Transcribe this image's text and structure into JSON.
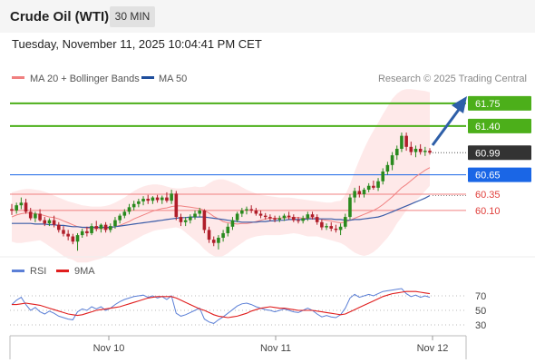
{
  "header": {
    "instrument": "Crude Oil (WTI)",
    "timeframe": "30 MIN"
  },
  "timestamp": "Tuesday, November 11, 2025 10:04:41 PM CET",
  "legend": {
    "bollinger": "MA 20 + Bollinger Bands",
    "ma50": "MA 50",
    "source": "Research © 2025 Trading Central",
    "rsi": "RSI",
    "rsi_ma": "9MA"
  },
  "colors": {
    "resistance": "#4caf1a",
    "current": "#333333",
    "pivot": "#1a66e6",
    "support": "#f08080",
    "arrow": "#2e5fa8",
    "candle_up": "#2a8a1e",
    "candle_down": "#b01e2a",
    "bands": "#fde2e2",
    "rsi_line": "#5b7fd6",
    "rsi_ma_line": "#e01e1e"
  },
  "chart_data": [
    {
      "type": "candlestick",
      "x_ticks": [
        "Nov 10",
        "Nov 11",
        "Nov 12"
      ],
      "levels": [
        {
          "label": "61.75",
          "value": 61.75,
          "kind": "resistance"
        },
        {
          "label": "61.40",
          "value": 61.4,
          "kind": "resistance"
        },
        {
          "label": "60.99",
          "value": 60.99,
          "kind": "current"
        },
        {
          "label": "60.65",
          "value": 60.65,
          "kind": "pivot"
        },
        {
          "label": "60.35",
          "value": 60.35,
          "kind": "support"
        },
        {
          "label": "60.10",
          "value": 60.1,
          "kind": "support"
        }
      ],
      "ylim": [
        59.4,
        62.0
      ],
      "candles": [
        {
          "o": 60.12,
          "h": 60.2,
          "l": 60.03,
          "c": 60.1
        },
        {
          "o": 60.1,
          "h": 60.22,
          "l": 60.05,
          "c": 60.18
        },
        {
          "o": 60.18,
          "h": 60.3,
          "l": 60.12,
          "c": 60.22
        },
        {
          "o": 60.22,
          "h": 60.28,
          "l": 60.05,
          "c": 60.08
        },
        {
          "o": 60.08,
          "h": 60.14,
          "l": 59.95,
          "c": 59.98
        },
        {
          "o": 59.98,
          "h": 60.08,
          "l": 59.92,
          "c": 60.05
        },
        {
          "o": 60.05,
          "h": 60.12,
          "l": 59.93,
          "c": 59.95
        },
        {
          "o": 59.95,
          "h": 60.0,
          "l": 59.86,
          "c": 59.9
        },
        {
          "o": 59.9,
          "h": 59.98,
          "l": 59.86,
          "c": 59.95
        },
        {
          "o": 59.95,
          "h": 60.02,
          "l": 59.84,
          "c": 59.88
        },
        {
          "o": 59.88,
          "h": 59.92,
          "l": 59.76,
          "c": 59.8
        },
        {
          "o": 59.8,
          "h": 59.86,
          "l": 59.7,
          "c": 59.74
        },
        {
          "o": 59.74,
          "h": 59.8,
          "l": 59.64,
          "c": 59.7
        },
        {
          "o": 59.7,
          "h": 59.74,
          "l": 59.58,
          "c": 59.62
        },
        {
          "o": 59.62,
          "h": 59.75,
          "l": 59.48,
          "c": 59.72
        },
        {
          "o": 59.72,
          "h": 59.82,
          "l": 59.68,
          "c": 59.78
        },
        {
          "o": 59.78,
          "h": 59.85,
          "l": 59.7,
          "c": 59.75
        },
        {
          "o": 59.75,
          "h": 59.9,
          "l": 59.72,
          "c": 59.86
        },
        {
          "o": 59.86,
          "h": 59.94,
          "l": 59.78,
          "c": 59.82
        },
        {
          "o": 59.82,
          "h": 59.9,
          "l": 59.76,
          "c": 59.88
        },
        {
          "o": 59.88,
          "h": 59.92,
          "l": 59.76,
          "c": 59.8
        },
        {
          "o": 59.8,
          "h": 59.9,
          "l": 59.76,
          "c": 59.86
        },
        {
          "o": 59.86,
          "h": 60.0,
          "l": 59.82,
          "c": 59.95
        },
        {
          "o": 59.95,
          "h": 60.05,
          "l": 59.9,
          "c": 60.02
        },
        {
          "o": 60.02,
          "h": 60.12,
          "l": 59.98,
          "c": 60.08
        },
        {
          "o": 60.08,
          "h": 60.2,
          "l": 60.04,
          "c": 60.15
        },
        {
          "o": 60.15,
          "h": 60.25,
          "l": 60.1,
          "c": 60.2
        },
        {
          "o": 60.2,
          "h": 60.28,
          "l": 60.15,
          "c": 60.24
        },
        {
          "o": 60.24,
          "h": 60.32,
          "l": 60.18,
          "c": 60.28
        },
        {
          "o": 60.28,
          "h": 60.34,
          "l": 60.2,
          "c": 60.25
        },
        {
          "o": 60.25,
          "h": 60.32,
          "l": 60.2,
          "c": 60.3
        },
        {
          "o": 60.3,
          "h": 60.34,
          "l": 60.22,
          "c": 60.26
        },
        {
          "o": 60.26,
          "h": 60.33,
          "l": 60.2,
          "c": 60.3
        },
        {
          "o": 60.3,
          "h": 60.38,
          "l": 60.22,
          "c": 60.25
        },
        {
          "o": 60.25,
          "h": 60.42,
          "l": 60.2,
          "c": 60.36
        },
        {
          "o": 60.36,
          "h": 60.4,
          "l": 59.95,
          "c": 60.0
        },
        {
          "o": 60.0,
          "h": 60.05,
          "l": 59.86,
          "c": 59.92
        },
        {
          "o": 59.92,
          "h": 60.0,
          "l": 59.86,
          "c": 59.95
        },
        {
          "o": 59.95,
          "h": 60.04,
          "l": 59.9,
          "c": 60.0
        },
        {
          "o": 60.0,
          "h": 60.1,
          "l": 59.96,
          "c": 60.05
        },
        {
          "o": 60.05,
          "h": 60.14,
          "l": 60.0,
          "c": 60.1
        },
        {
          "o": 60.1,
          "h": 60.12,
          "l": 59.75,
          "c": 59.8
        },
        {
          "o": 59.8,
          "h": 59.85,
          "l": 59.6,
          "c": 59.65
        },
        {
          "o": 59.65,
          "h": 59.7,
          "l": 59.55,
          "c": 59.6
        },
        {
          "o": 59.6,
          "h": 59.72,
          "l": 59.5,
          "c": 59.68
        },
        {
          "o": 59.68,
          "h": 59.8,
          "l": 59.62,
          "c": 59.75
        },
        {
          "o": 59.75,
          "h": 59.9,
          "l": 59.7,
          "c": 59.85
        },
        {
          "o": 59.85,
          "h": 60.0,
          "l": 59.8,
          "c": 59.95
        },
        {
          "o": 59.95,
          "h": 60.08,
          "l": 59.92,
          "c": 60.05
        },
        {
          "o": 60.05,
          "h": 60.14,
          "l": 60.0,
          "c": 60.1
        },
        {
          "o": 60.1,
          "h": 60.16,
          "l": 60.04,
          "c": 60.12
        },
        {
          "o": 60.12,
          "h": 60.18,
          "l": 60.06,
          "c": 60.1
        },
        {
          "o": 60.1,
          "h": 60.14,
          "l": 60.02,
          "c": 60.05
        },
        {
          "o": 60.05,
          "h": 60.1,
          "l": 59.98,
          "c": 60.02
        },
        {
          "o": 60.02,
          "h": 60.06,
          "l": 59.96,
          "c": 60.0
        },
        {
          "o": 60.0,
          "h": 60.04,
          "l": 59.94,
          "c": 59.98
        },
        {
          "o": 59.98,
          "h": 60.02,
          "l": 59.92,
          "c": 59.96
        },
        {
          "o": 59.96,
          "h": 60.02,
          "l": 59.92,
          "c": 59.98
        },
        {
          "o": 59.98,
          "h": 60.05,
          "l": 59.94,
          "c": 60.02
        },
        {
          "o": 60.02,
          "h": 60.08,
          "l": 59.96,
          "c": 60.0
        },
        {
          "o": 60.0,
          "h": 60.04,
          "l": 59.92,
          "c": 59.95
        },
        {
          "o": 59.95,
          "h": 60.0,
          "l": 59.9,
          "c": 59.94
        },
        {
          "o": 59.94,
          "h": 60.02,
          "l": 59.9,
          "c": 59.98
        },
        {
          "o": 59.98,
          "h": 60.08,
          "l": 59.94,
          "c": 60.04
        },
        {
          "o": 60.04,
          "h": 60.08,
          "l": 59.96,
          "c": 60.0
        },
        {
          "o": 60.0,
          "h": 60.04,
          "l": 59.88,
          "c": 59.92
        },
        {
          "o": 59.92,
          "h": 59.96,
          "l": 59.8,
          "c": 59.84
        },
        {
          "o": 59.84,
          "h": 59.9,
          "l": 59.8,
          "c": 59.86
        },
        {
          "o": 59.86,
          "h": 59.92,
          "l": 59.78,
          "c": 59.82
        },
        {
          "o": 59.82,
          "h": 59.88,
          "l": 59.76,
          "c": 59.8
        },
        {
          "o": 59.8,
          "h": 59.9,
          "l": 59.72,
          "c": 59.85
        },
        {
          "o": 59.85,
          "h": 60.05,
          "l": 59.82,
          "c": 60.0
        },
        {
          "o": 60.0,
          "h": 60.35,
          "l": 59.96,
          "c": 60.3
        },
        {
          "o": 60.3,
          "h": 60.45,
          "l": 60.22,
          "c": 60.4
        },
        {
          "o": 60.4,
          "h": 60.48,
          "l": 60.3,
          "c": 60.35
        },
        {
          "o": 60.35,
          "h": 60.45,
          "l": 60.3,
          "c": 60.42
        },
        {
          "o": 60.42,
          "h": 60.52,
          "l": 60.38,
          "c": 60.48
        },
        {
          "o": 60.48,
          "h": 60.56,
          "l": 60.42,
          "c": 60.45
        },
        {
          "o": 60.45,
          "h": 60.6,
          "l": 60.4,
          "c": 60.55
        },
        {
          "o": 60.55,
          "h": 60.75,
          "l": 60.5,
          "c": 60.7
        },
        {
          "o": 60.7,
          "h": 60.85,
          "l": 60.65,
          "c": 60.8
        },
        {
          "o": 60.8,
          "h": 61.0,
          "l": 60.72,
          "c": 60.95
        },
        {
          "o": 60.95,
          "h": 61.1,
          "l": 60.88,
          "c": 61.05
        },
        {
          "o": 61.05,
          "h": 61.3,
          "l": 61.0,
          "c": 61.25
        },
        {
          "o": 61.25,
          "h": 61.3,
          "l": 61.02,
          "c": 61.08
        },
        {
          "o": 61.08,
          "h": 61.16,
          "l": 60.95,
          "c": 61.0
        },
        {
          "o": 61.0,
          "h": 61.1,
          "l": 60.92,
          "c": 61.05
        },
        {
          "o": 61.05,
          "h": 61.12,
          "l": 60.96,
          "c": 61.0
        },
        {
          "o": 61.0,
          "h": 61.08,
          "l": 60.94,
          "c": 61.02
        },
        {
          "o": 61.02,
          "h": 61.06,
          "l": 60.96,
          "c": 60.99
        }
      ],
      "ma20": [
        60.0,
        60.03,
        60.05,
        60.06,
        60.06,
        60.05,
        60.04,
        60.02,
        60.0,
        59.99,
        59.97,
        59.94,
        59.91,
        59.88,
        59.85,
        59.84,
        59.83,
        59.82,
        59.82,
        59.82,
        59.82,
        59.83,
        59.85,
        59.87,
        59.9,
        59.93,
        59.97,
        60.0,
        60.03,
        60.06,
        60.09,
        60.11,
        60.13,
        60.14,
        60.16,
        60.17,
        60.17,
        60.16,
        60.15,
        60.14,
        60.13,
        60.1,
        60.06,
        60.01,
        59.97,
        59.93,
        59.91,
        59.9,
        59.89,
        59.9,
        59.9,
        59.91,
        59.93,
        59.95,
        59.97,
        59.98,
        59.98,
        59.98,
        59.99,
        59.99,
        59.99,
        59.99,
        59.98,
        59.98,
        59.99,
        59.98,
        59.96,
        59.95,
        59.94,
        59.92,
        59.91,
        59.92,
        59.95,
        59.98,
        60.01,
        60.04,
        60.07,
        60.1,
        60.14,
        60.19,
        60.25,
        60.31,
        60.38,
        60.45,
        60.5,
        60.56,
        60.62,
        60.67,
        60.72,
        60.76
      ],
      "ma50": [
        59.9,
        59.9,
        59.9,
        59.9,
        59.9,
        59.89,
        59.89,
        59.89,
        59.88,
        59.88,
        59.87,
        59.87,
        59.86,
        59.85,
        59.85,
        59.84,
        59.84,
        59.84,
        59.84,
        59.84,
        59.84,
        59.84,
        59.85,
        59.86,
        59.87,
        59.88,
        59.89,
        59.9,
        59.91,
        59.92,
        59.93,
        59.94,
        59.95,
        59.96,
        59.97,
        59.98,
        59.99,
        59.99,
        60.0,
        60.0,
        60.0,
        60.0,
        59.99,
        59.98,
        59.97,
        59.96,
        59.95,
        59.94,
        59.93,
        59.92,
        59.92,
        59.92,
        59.92,
        59.93,
        59.93,
        59.94,
        59.94,
        59.95,
        59.95,
        59.96,
        59.96,
        59.96,
        59.96,
        59.97,
        59.97,
        59.97,
        59.97,
        59.97,
        59.97,
        59.96,
        59.96,
        59.95,
        59.95,
        59.96,
        59.96,
        59.97,
        59.98,
        59.99,
        60.0,
        60.02,
        60.05,
        60.08,
        60.11,
        60.14,
        60.17,
        60.2,
        60.23,
        60.26,
        60.29,
        60.33
      ],
      "bollinger_upper": [
        60.38,
        60.4,
        60.42,
        60.43,
        60.43,
        60.42,
        60.41,
        60.39,
        60.36,
        60.33,
        60.3,
        60.27,
        60.24,
        60.22,
        60.2,
        60.18,
        60.17,
        60.16,
        60.16,
        60.16,
        60.17,
        60.19,
        60.22,
        60.26,
        60.3,
        60.35,
        60.4,
        60.44,
        60.47,
        60.49,
        60.5,
        60.5,
        60.49,
        60.47,
        60.45,
        60.44,
        60.44,
        60.45,
        60.46,
        60.47,
        60.46,
        60.47,
        60.52,
        60.56,
        60.58,
        60.58,
        60.56,
        60.53,
        60.5,
        60.46,
        60.42,
        60.39,
        60.36,
        60.34,
        60.33,
        60.32,
        60.31,
        60.3,
        60.3,
        60.3,
        60.29,
        60.28,
        60.27,
        60.26,
        60.25,
        60.24,
        60.23,
        60.22,
        60.22,
        60.24,
        60.25,
        60.34,
        60.5,
        60.7,
        60.88,
        61.05,
        61.2,
        61.33,
        61.45,
        61.58,
        61.7,
        61.82,
        61.9,
        61.95,
        61.97,
        61.97,
        61.96,
        61.95,
        61.94,
        61.92
      ],
      "bollinger_lower": [
        59.62,
        59.6,
        59.6,
        59.61,
        59.62,
        59.63,
        59.64,
        59.6,
        59.55,
        59.5,
        59.45,
        59.4,
        59.36,
        59.34,
        59.3,
        59.3,
        59.3,
        59.32,
        59.34,
        59.36,
        59.39,
        59.43,
        59.48,
        59.52,
        59.56,
        59.6,
        59.64,
        59.68,
        59.72,
        59.75,
        59.78,
        59.8,
        59.81,
        59.82,
        59.83,
        59.84,
        59.82,
        59.76,
        59.7,
        59.64,
        59.58,
        59.5,
        59.44,
        59.4,
        59.38,
        59.4,
        59.44,
        59.5,
        59.55,
        59.6,
        59.65,
        59.68,
        59.7,
        59.71,
        59.72,
        59.72,
        59.72,
        59.72,
        59.73,
        59.74,
        59.75,
        59.74,
        59.72,
        59.7,
        59.7,
        59.7,
        59.68,
        59.66,
        59.64,
        59.62,
        59.6,
        59.56,
        59.5,
        59.45,
        59.42,
        59.4,
        59.42,
        59.46,
        59.52,
        59.6,
        59.68,
        59.78,
        59.9,
        60.0,
        60.1,
        60.18,
        60.25,
        60.32,
        60.4,
        60.48
      ]
    },
    {
      "type": "line",
      "series": [
        {
          "name": "RSI",
          "values": [
            58,
            64,
            68,
            58,
            50,
            54,
            48,
            45,
            49,
            46,
            42,
            40,
            38,
            37,
            48,
            52,
            50,
            55,
            52,
            55,
            50,
            53,
            58,
            62,
            65,
            67,
            69,
            70,
            71,
            68,
            70,
            67,
            69,
            65,
            70,
            46,
            42,
            44,
            47,
            50,
            53,
            38,
            34,
            32,
            37,
            41,
            46,
            51,
            56,
            59,
            60,
            58,
            55,
            53,
            51,
            50,
            48,
            50,
            52,
            50,
            48,
            47,
            50,
            53,
            50,
            45,
            41,
            43,
            41,
            40,
            44,
            53,
            67,
            72,
            68,
            70,
            72,
            70,
            73,
            76,
            77,
            78,
            79,
            80,
            73,
            69,
            71,
            68,
            70,
            68
          ]
        },
        {
          "name": "9MA",
          "values": [
            58,
            58,
            59,
            60,
            59,
            58,
            57,
            55,
            53,
            51,
            49,
            47,
            45,
            44,
            43,
            44,
            46,
            48,
            50,
            51,
            52,
            53,
            54,
            55,
            57,
            59,
            61,
            63,
            65,
            67,
            68,
            69,
            69,
            69,
            69,
            67,
            64,
            61,
            58,
            55,
            52,
            50,
            47,
            44,
            42,
            41,
            40,
            41,
            42,
            44,
            46,
            49,
            51,
            53,
            54,
            55,
            54,
            53,
            53,
            52,
            51,
            50,
            50,
            50,
            50,
            49,
            48,
            47,
            46,
            45,
            44,
            45,
            48,
            51,
            54,
            57,
            60,
            63,
            66,
            69,
            71,
            73,
            74,
            75,
            76,
            76,
            76,
            75,
            74,
            73
          ]
        }
      ],
      "y_ticks": [
        70,
        50,
        30
      ],
      "ylim": [
        20,
        85
      ]
    }
  ]
}
